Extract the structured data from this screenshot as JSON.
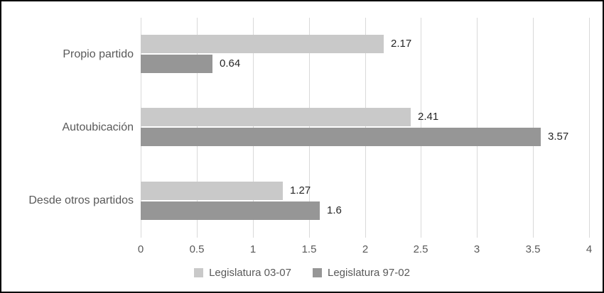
{
  "chart_data": {
    "type": "bar",
    "orientation": "horizontal",
    "title": "",
    "categories": [
      "Propio partido",
      "Autoubicación",
      "Desde otros partidos"
    ],
    "series": [
      {
        "name": "Legislatura 03-07",
        "color": "#c9c9c9",
        "values": [
          2.17,
          2.41,
          1.27
        ],
        "labels": [
          "2.17",
          "2.41",
          "1.27"
        ]
      },
      {
        "name": "Legislatura 97-02",
        "color": "#969696",
        "values": [
          0.64,
          3.57,
          1.6
        ],
        "labels": [
          "0.64",
          "3.57",
          "1.6"
        ]
      }
    ],
    "xlim": [
      0,
      4
    ],
    "xticks": [
      "0",
      "0.5",
      "1",
      "1.5",
      "2",
      "2.5",
      "3",
      "3.5",
      "4"
    ],
    "grid": true,
    "legend_position": "bottom"
  },
  "colors": {
    "gridline": "#d9d9d9",
    "axis_text": "#595959",
    "value_text": "#262626",
    "frame_border": "#000000",
    "background": "#ffffff"
  }
}
